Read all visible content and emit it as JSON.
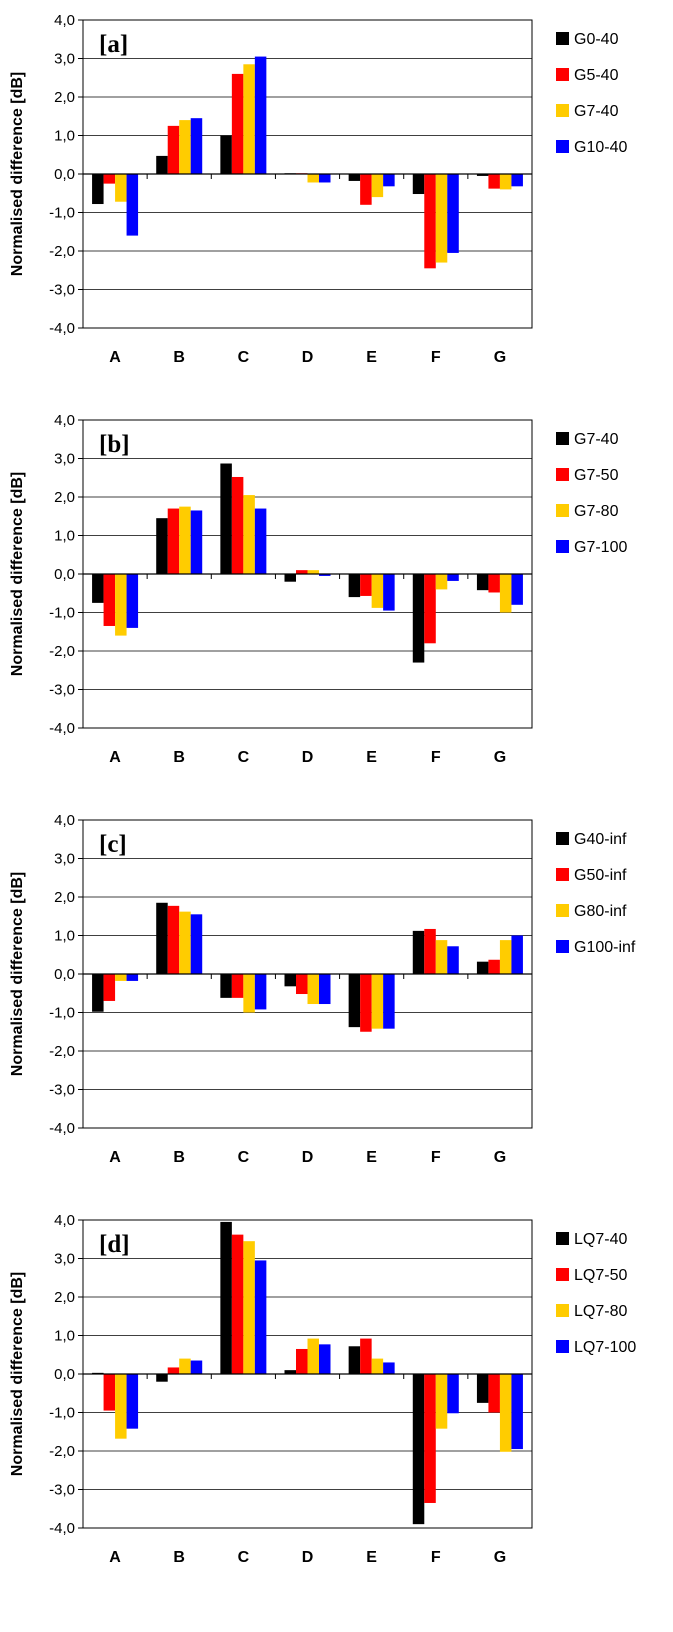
{
  "colors": {
    "black": "#000000",
    "red": "#ff0000",
    "yellow": "#ffcc00",
    "blue": "#0000ff"
  },
  "chart_data": [
    {
      "type": "bar",
      "panel_label": "[a]",
      "ylabel": "Normalised difference [dB]",
      "categories": [
        "A",
        "B",
        "C",
        "D",
        "E",
        "F",
        "G"
      ],
      "ylim": [
        -4,
        4
      ],
      "yticks": [
        "4,0",
        "3,0",
        "2,0",
        "1,0",
        "0,0",
        "-1,0",
        "-2,0",
        "-3,0",
        "-4,0"
      ],
      "grid": true,
      "legend_position": "right",
      "series": [
        {
          "name": "G0-40",
          "color": "#000000",
          "values": [
            -0.78,
            0.47,
            1.0,
            0.02,
            -0.18,
            -0.52,
            -0.05
          ]
        },
        {
          "name": "G5-40",
          "color": "#ff0000",
          "values": [
            -0.25,
            1.25,
            2.6,
            0.02,
            -0.8,
            -2.45,
            -0.38
          ]
        },
        {
          "name": "G7-40",
          "color": "#ffcc00",
          "values": [
            -0.72,
            1.4,
            2.85,
            -0.22,
            -0.6,
            -2.3,
            -0.4
          ]
        },
        {
          "name": "G10-40",
          "color": "#0000ff",
          "values": [
            -1.6,
            1.45,
            3.05,
            -0.22,
            -0.32,
            -2.05,
            -0.32
          ]
        }
      ]
    },
    {
      "type": "bar",
      "panel_label": "[b]",
      "ylabel": "Normalised difference [dB]",
      "categories": [
        "A",
        "B",
        "C",
        "D",
        "E",
        "F",
        "G"
      ],
      "ylim": [
        -4,
        4
      ],
      "yticks": [
        "4,0",
        "3,0",
        "2,0",
        "1,0",
        "0,0",
        "-1,0",
        "-2,0",
        "-3,0",
        "-4,0"
      ],
      "grid": true,
      "legend_position": "right",
      "series": [
        {
          "name": "G7-40",
          "color": "#000000",
          "values": [
            -0.75,
            1.45,
            2.87,
            -0.2,
            -0.6,
            -2.3,
            -0.42
          ]
        },
        {
          "name": "G7-50",
          "color": "#ff0000",
          "values": [
            -1.35,
            1.7,
            2.52,
            0.1,
            -0.57,
            -1.8,
            -0.48
          ]
        },
        {
          "name": "G7-80",
          "color": "#ffcc00",
          "values": [
            -1.6,
            1.75,
            2.05,
            0.1,
            -0.88,
            -0.4,
            -1.0
          ]
        },
        {
          "name": "G7-100",
          "color": "#0000ff",
          "values": [
            -1.4,
            1.65,
            1.7,
            -0.05,
            -0.95,
            -0.18,
            -0.8
          ]
        }
      ]
    },
    {
      "type": "bar",
      "panel_label": "[c]",
      "ylabel": "Normalised difference [dB]",
      "categories": [
        "A",
        "B",
        "C",
        "D",
        "E",
        "F",
        "G"
      ],
      "ylim": [
        -4,
        4
      ],
      "yticks": [
        "4,0",
        "3,0",
        "2,0",
        "1,0",
        "0,0",
        "-1,0",
        "-2,0",
        "-3,0",
        "-4,0"
      ],
      "grid": true,
      "legend_position": "right",
      "series": [
        {
          "name": "G40-inf",
          "color": "#000000",
          "values": [
            -0.98,
            1.85,
            -0.62,
            -0.32,
            -1.38,
            1.12,
            0.32
          ]
        },
        {
          "name": "G50-inf",
          "color": "#ff0000",
          "values": [
            -0.7,
            1.77,
            -0.62,
            -0.52,
            -1.5,
            1.17,
            0.37
          ]
        },
        {
          "name": "G80-inf",
          "color": "#ffcc00",
          "values": [
            -0.18,
            1.62,
            -1.0,
            -0.78,
            -1.42,
            0.88,
            0.88
          ]
        },
        {
          "name": "G100-inf",
          "color": "#0000ff",
          "values": [
            -0.18,
            1.55,
            -0.92,
            -0.78,
            -1.42,
            0.72,
            1.0
          ]
        }
      ]
    },
    {
      "type": "bar",
      "panel_label": "[d]",
      "ylabel": "Normalised difference [dB]",
      "categories": [
        "A",
        "B",
        "C",
        "D",
        "E",
        "F",
        "G"
      ],
      "ylim": [
        -4,
        4
      ],
      "yticks": [
        "4,0",
        "3,0",
        "2,0",
        "1,0",
        "0,0",
        "-1,0",
        "-2,0",
        "-3,0",
        "-4,0"
      ],
      "grid": true,
      "legend_position": "right",
      "series": [
        {
          "name": "LQ7-40",
          "color": "#000000",
          "values": [
            0.03,
            -0.2,
            3.95,
            0.1,
            0.72,
            -3.9,
            -0.75
          ]
        },
        {
          "name": "LQ7-50",
          "color": "#ff0000",
          "values": [
            -0.95,
            0.17,
            3.62,
            0.65,
            0.92,
            -3.35,
            -1.0
          ]
        },
        {
          "name": "LQ7-80",
          "color": "#ffcc00",
          "values": [
            -1.68,
            0.4,
            3.45,
            0.92,
            0.4,
            -1.42,
            -2.02
          ]
        },
        {
          "name": "LQ7-100",
          "color": "#0000ff",
          "values": [
            -1.42,
            0.35,
            2.95,
            0.77,
            0.3,
            -1.02,
            -1.95
          ]
        }
      ]
    }
  ]
}
